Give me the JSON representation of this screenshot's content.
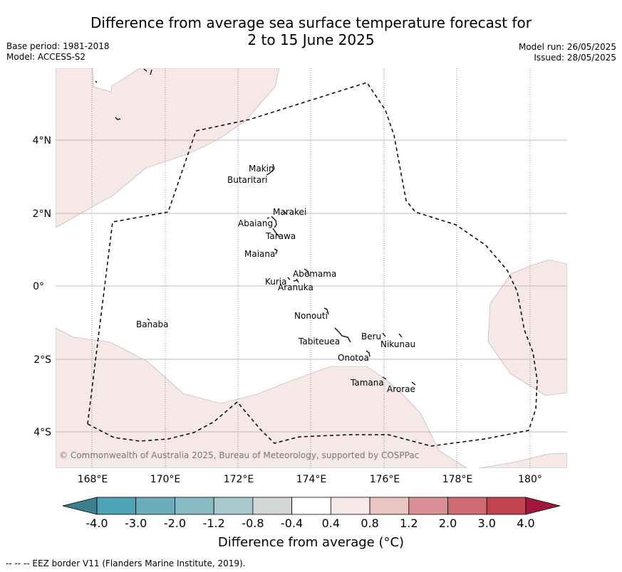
{
  "header": {
    "title_line1": "Difference from average sea surface temperature forecast for",
    "title_line2": "2 to 15 June 2025",
    "base_period": "Base period: 1981-2018",
    "model": "Model: ACCESS-S2",
    "model_run": "Model run: 26/05/2025",
    "issued": "Issued: 28/05/2025"
  },
  "map": {
    "lon_ticks": [
      "168°E",
      "170°E",
      "172°E",
      "174°E",
      "176°E",
      "178°E",
      "180°"
    ],
    "lat_ticks": [
      "4°N",
      "2°N",
      "0°",
      "2°S",
      "4°S"
    ],
    "places": [
      "Makin",
      "Butaritari",
      "Marakei",
      "Abaiang",
      "Tarawa",
      "Maiana",
      "Abemama",
      "Kuria",
      "Aranuka",
      "Nonouti",
      "Banaba",
      "Beru",
      "Nikunau",
      "Tabiteuea",
      "Onotoa",
      "Tamana",
      "Arorae"
    ],
    "copyright": "© Commonwealth of Australia 2025, Bureau of Meteorology, supported by COSPPac",
    "land_color": "#f5e8e6",
    "border_style": "dashed"
  },
  "colorbar": {
    "tick_labels": [
      "-4.0",
      "-3.0",
      "-2.0",
      "-1.2",
      "-0.8",
      "-0.4",
      "0.4",
      "0.8",
      "1.2",
      "2.0",
      "3.0",
      "4.0"
    ],
    "colors": [
      "#4ba3b5",
      "#6aaebd",
      "#88bac4",
      "#a9c9cc",
      "#d2d6d6",
      "#ffffff",
      "#f6e9e7",
      "#e9c6c3",
      "#d98f95",
      "#cd6a73",
      "#c2434f"
    ],
    "under_color": "#3c7f8d",
    "over_color": "#a4163b",
    "label": "Difference from average (°C)"
  },
  "footer": {
    "legend_text": "--  --  -- EEZ border V11 (Flanders Marine Institute, 2019)."
  }
}
